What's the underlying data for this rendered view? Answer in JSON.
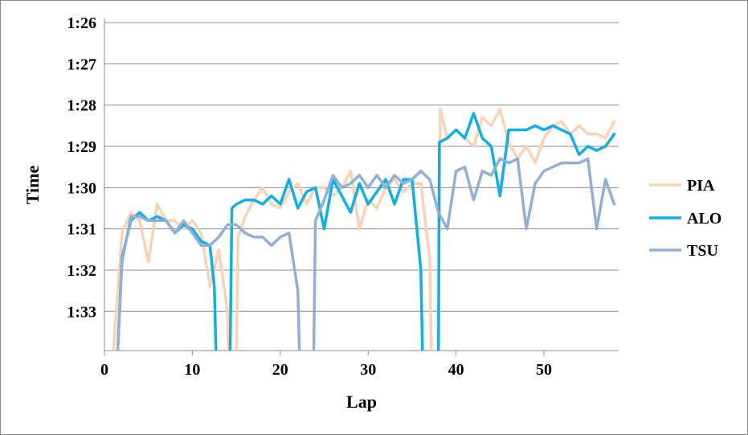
{
  "chart_data": {
    "type": "line",
    "title": "",
    "xlabel": "Lap",
    "ylabel": "Time",
    "xlim": [
      0,
      58.5
    ],
    "ylim": [
      85.9,
      93.95
    ],
    "y_reversed": true,
    "grid": "horizontal",
    "legend_placement": "right",
    "x_ticks": [
      0,
      10,
      20,
      30,
      40,
      50
    ],
    "y_ticks": [
      {
        "value": 86,
        "label": "1:26"
      },
      {
        "value": 87,
        "label": "1:27"
      },
      {
        "value": 88,
        "label": "1:28"
      },
      {
        "value": 89,
        "label": "1:29"
      },
      {
        "value": 90,
        "label": "1:30"
      },
      {
        "value": 91,
        "label": "1:31"
      },
      {
        "value": 92,
        "label": "1:32"
      },
      {
        "value": 93,
        "label": "1:33"
      }
    ],
    "series": [
      {
        "name": "PIA",
        "color": "#FAD3B4",
        "points": [
          [
            1,
            94.0
          ],
          [
            2,
            91.1
          ],
          [
            3,
            90.6
          ],
          [
            4,
            90.8
          ],
          [
            5,
            91.8
          ],
          [
            6,
            90.4
          ],
          [
            7,
            90.8
          ],
          [
            8,
            90.8
          ],
          [
            9,
            91.0
          ],
          [
            10,
            90.8
          ],
          [
            11,
            91.1
          ],
          [
            12,
            92.4
          ],
          [
            13,
            91.5
          ],
          [
            14,
            93.0
          ],
          [
            14.1,
            94.1
          ],
          [
            15,
            94.1
          ],
          [
            15.2,
            91.2
          ],
          [
            16,
            90.7
          ],
          [
            17,
            90.3
          ],
          [
            18,
            90.0
          ],
          [
            19,
            90.4
          ],
          [
            20,
            90.5
          ],
          [
            21,
            90.1
          ],
          [
            22,
            89.9
          ],
          [
            23,
            90.4
          ],
          [
            24,
            90.0
          ],
          [
            25,
            90.0
          ],
          [
            26,
            90.2
          ],
          [
            27,
            90.0
          ],
          [
            28,
            89.6
          ],
          [
            29,
            91.0
          ],
          [
            30,
            90.3
          ],
          [
            31,
            90.5
          ],
          [
            32,
            90.0
          ],
          [
            33,
            89.8
          ],
          [
            34,
            90.1
          ],
          [
            35,
            89.9
          ],
          [
            36,
            89.9
          ],
          [
            37,
            91.7
          ],
          [
            37.2,
            94.1
          ],
          [
            38,
            94.1
          ],
          [
            38.2,
            88.1
          ],
          [
            39,
            88.8
          ],
          [
            40,
            88.6
          ],
          [
            41,
            88.8
          ],
          [
            42,
            89.0
          ],
          [
            43,
            88.3
          ],
          [
            44,
            88.5
          ],
          [
            45,
            88.1
          ],
          [
            46,
            88.9
          ],
          [
            47,
            89.3
          ],
          [
            48,
            89.0
          ],
          [
            49,
            89.4
          ],
          [
            50,
            88.8
          ],
          [
            51,
            88.5
          ],
          [
            52,
            88.4
          ],
          [
            53,
            88.7
          ],
          [
            54,
            88.5
          ],
          [
            55,
            88.7
          ],
          [
            56,
            88.7
          ],
          [
            57,
            88.8
          ],
          [
            58,
            88.4
          ]
        ]
      },
      {
        "name": "ALO",
        "color": "#0FB0E8",
        "points": [
          [
            1.5,
            94.0
          ],
          [
            2,
            91.7
          ],
          [
            3,
            90.8
          ],
          [
            4,
            90.6
          ],
          [
            5,
            90.8
          ],
          [
            6,
            90.7
          ],
          [
            7,
            90.8
          ],
          [
            8,
            91.1
          ],
          [
            9,
            90.9
          ],
          [
            10,
            91.0
          ],
          [
            11,
            91.3
          ],
          [
            12,
            91.4
          ],
          [
            12.5,
            92.4
          ],
          [
            12.7,
            94.1
          ],
          [
            14.3,
            94.1
          ],
          [
            14.5,
            90.5
          ],
          [
            15,
            90.4
          ],
          [
            16,
            90.3
          ],
          [
            17,
            90.3
          ],
          [
            18,
            90.4
          ],
          [
            19,
            90.2
          ],
          [
            20,
            90.4
          ],
          [
            21,
            89.8
          ],
          [
            22,
            90.5
          ],
          [
            23,
            90.1
          ],
          [
            24,
            90.0
          ],
          [
            25,
            91.0
          ],
          [
            26,
            89.8
          ],
          [
            27,
            90.2
          ],
          [
            28,
            90.6
          ],
          [
            29,
            89.9
          ],
          [
            30,
            90.4
          ],
          [
            31,
            90.1
          ],
          [
            32,
            89.8
          ],
          [
            33,
            90.4
          ],
          [
            34,
            89.8
          ],
          [
            35,
            89.8
          ],
          [
            36,
            92.0
          ],
          [
            36.2,
            94.1
          ],
          [
            38,
            94.1
          ],
          [
            38.1,
            88.9
          ],
          [
            39,
            88.8
          ],
          [
            40,
            88.6
          ],
          [
            41,
            88.8
          ],
          [
            42,
            88.2
          ],
          [
            43,
            88.8
          ],
          [
            44,
            89.0
          ],
          [
            45,
            90.2
          ],
          [
            46,
            88.6
          ],
          [
            47,
            88.6
          ],
          [
            48,
            88.6
          ],
          [
            49,
            88.5
          ],
          [
            50,
            88.6
          ],
          [
            51,
            88.5
          ],
          [
            52,
            88.6
          ],
          [
            53,
            88.7
          ],
          [
            54,
            89.2
          ],
          [
            55,
            89.0
          ],
          [
            56,
            89.1
          ],
          [
            57,
            89.0
          ],
          [
            58,
            88.7
          ]
        ]
      },
      {
        "name": "TSU",
        "color": "#92B0D6",
        "points": [
          [
            1.5,
            94.0
          ],
          [
            2,
            91.8
          ],
          [
            3,
            90.7
          ],
          [
            4,
            90.7
          ],
          [
            5,
            90.8
          ],
          [
            6,
            90.8
          ],
          [
            7,
            90.8
          ],
          [
            8,
            91.1
          ],
          [
            9,
            90.8
          ],
          [
            10,
            91.1
          ],
          [
            11,
            91.4
          ],
          [
            12,
            91.4
          ],
          [
            13,
            91.2
          ],
          [
            14,
            90.9
          ],
          [
            15,
            90.9
          ],
          [
            16,
            91.1
          ],
          [
            17,
            91.2
          ],
          [
            18,
            91.2
          ],
          [
            19,
            91.4
          ],
          [
            20,
            91.2
          ],
          [
            21,
            91.1
          ],
          [
            22,
            92.5
          ],
          [
            22.2,
            94.1
          ],
          [
            23.8,
            94.1
          ],
          [
            24,
            90.8
          ],
          [
            25,
            90.3
          ],
          [
            26,
            89.7
          ],
          [
            27,
            90.0
          ],
          [
            28,
            89.9
          ],
          [
            29,
            89.7
          ],
          [
            30,
            90.0
          ],
          [
            31,
            89.7
          ],
          [
            32,
            90.0
          ],
          [
            33,
            89.7
          ],
          [
            34,
            89.9
          ],
          [
            35,
            89.8
          ],
          [
            36,
            89.6
          ],
          [
            37,
            89.8
          ],
          [
            38,
            90.6
          ],
          [
            39,
            91.0
          ],
          [
            40,
            89.6
          ],
          [
            41,
            89.5
          ],
          [
            42,
            90.3
          ],
          [
            43,
            89.6
          ],
          [
            44,
            89.7
          ],
          [
            45,
            89.3
          ],
          [
            46,
            89.4
          ],
          [
            47,
            89.3
          ],
          [
            48,
            91.0
          ],
          [
            49,
            89.9
          ],
          [
            50,
            89.6
          ],
          [
            51,
            89.5
          ],
          [
            52,
            89.4
          ],
          [
            53,
            89.4
          ],
          [
            54,
            89.4
          ],
          [
            55,
            89.3
          ],
          [
            56,
            91.0
          ],
          [
            57,
            89.8
          ],
          [
            58,
            90.4
          ]
        ]
      }
    ]
  }
}
